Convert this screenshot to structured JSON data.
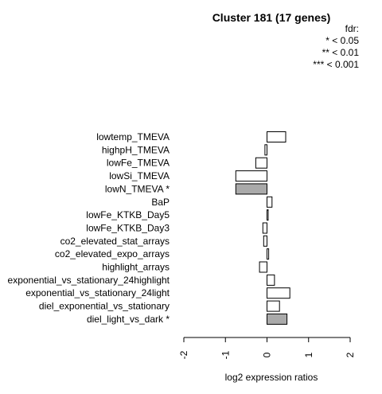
{
  "chart_data": {
    "type": "bar",
    "orientation": "horizontal",
    "title": "Cluster 181 (17 genes)",
    "xlabel": "log2 expression ratios",
    "xlim": [
      -2,
      2
    ],
    "xticks": [
      "-2",
      "-1",
      "0",
      "1",
      "2"
    ],
    "legend": {
      "title": "fdr:",
      "entries": [
        "* < 0.05",
        "** < 0.01",
        "*** < 0.001"
      ],
      "placement": "top-right"
    },
    "categories": [
      "lowtemp_TMEVA",
      "highpH_TMEVA",
      "lowFe_TMEVA",
      "lowSi_TMEVA",
      "lowN_TMEVA *",
      "BaP",
      "lowFe_KTKB_Day5",
      "lowFe_KTKB_Day3",
      "co2_elevated_stat_arrays",
      "co2_elevated_expo_arrays",
      "highlight_arrays",
      "exponential_vs_stationary_24highlight",
      "exponential_vs_stationary_24light",
      "diel_exponential_vs_stationary",
      "diel_light_vs_dark *"
    ],
    "values": [
      0.45,
      -0.05,
      -0.27,
      -0.75,
      -0.75,
      0.12,
      0.02,
      -0.1,
      -0.08,
      0.04,
      -0.18,
      0.18,
      0.55,
      0.3,
      0.48
    ],
    "significant": [
      false,
      false,
      false,
      false,
      true,
      false,
      false,
      false,
      false,
      false,
      false,
      false,
      false,
      false,
      true
    ],
    "colors": {
      "significant": "#aaaaaa",
      "normal": "#ffffff",
      "stroke": "#000000"
    }
  }
}
